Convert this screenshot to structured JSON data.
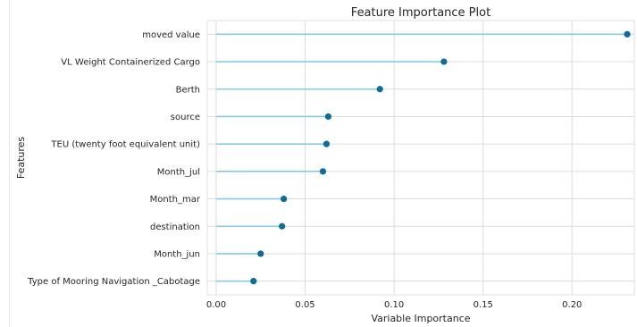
{
  "chart_data": {
    "type": "lollipop",
    "orientation": "horizontal",
    "title": "Feature Importance Plot",
    "xlabel": "Variable Importance",
    "ylabel": "Features",
    "xlim": [
      -0.005,
      0.235
    ],
    "xticks": [
      0.0,
      0.05,
      0.1,
      0.15,
      0.2
    ],
    "xtick_labels": [
      "0.00",
      "0.05",
      "0.10",
      "0.15",
      "0.20"
    ],
    "grid": true,
    "categories": [
      "moved value",
      "VL Weight Containerized Cargo",
      "Berth",
      "source",
      "TEU (twenty foot equivalent unit)",
      "Month_jul",
      "Month_mar",
      "destination",
      "Month_jun",
      "Type of Mooring Navigation _Cabotage"
    ],
    "values": [
      0.231,
      0.128,
      0.092,
      0.063,
      0.062,
      0.06,
      0.038,
      0.037,
      0.025,
      0.021
    ],
    "colors": {
      "stem": "#87cbe8",
      "marker": "#0e6b9a",
      "grid": "#dcdcdc"
    }
  }
}
